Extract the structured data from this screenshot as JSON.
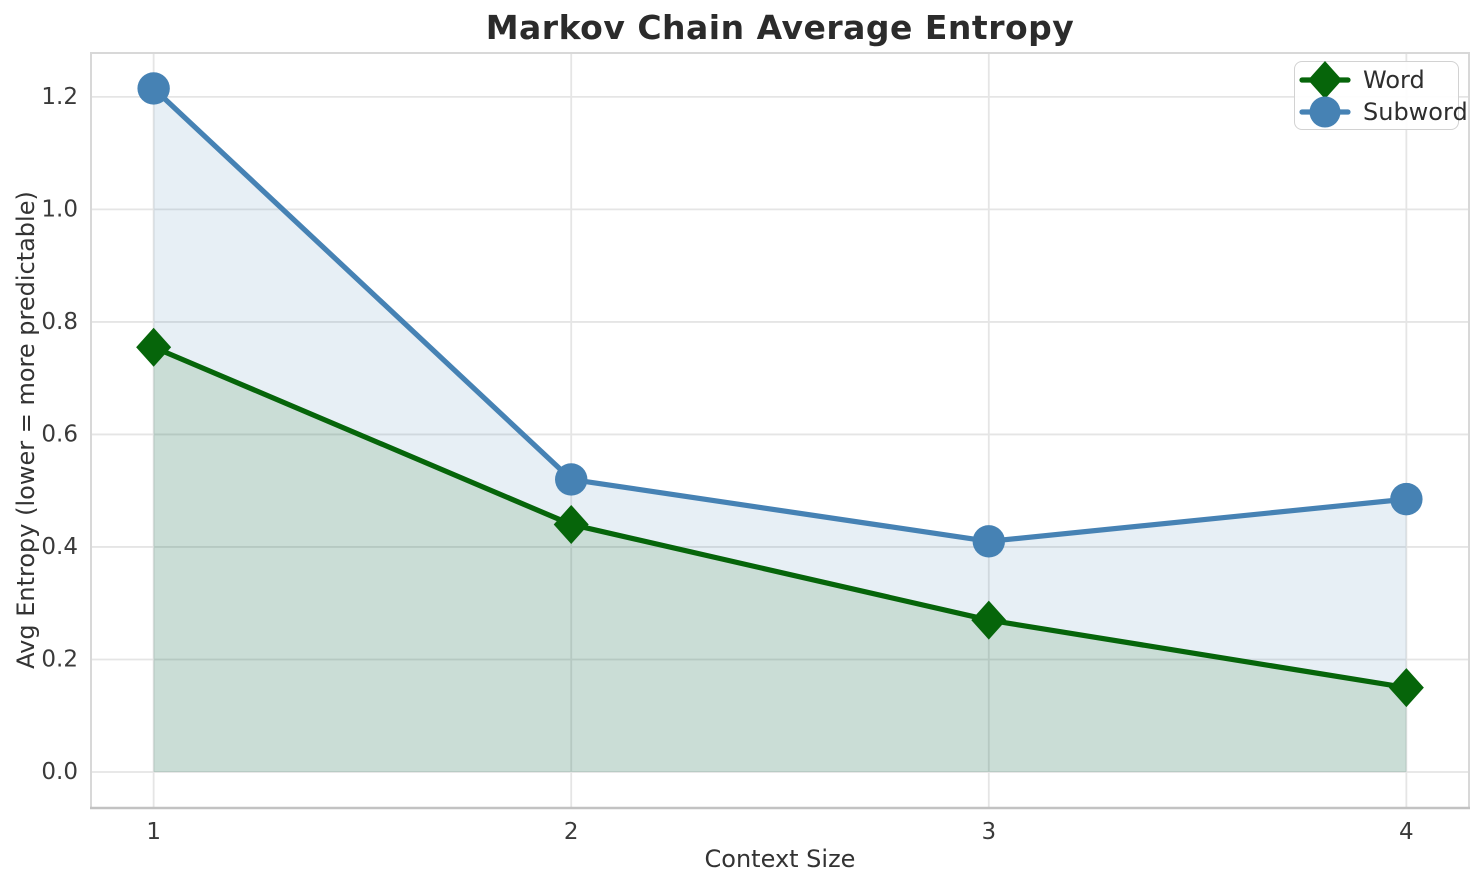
{
  "chart_data": {
    "type": "line",
    "title": "Markov Chain Average Entropy",
    "xlabel": "Context Size",
    "ylabel": "Avg Entropy (lower = more predictable)",
    "x": [
      1,
      2,
      3,
      4
    ],
    "series": [
      {
        "name": "Word",
        "values": [
          0.755,
          0.44,
          0.27,
          0.15
        ],
        "color": "#06650a",
        "marker": "diamond",
        "area_fill": true,
        "fill_opacity": 0.13
      },
      {
        "name": "Subword",
        "values": [
          1.215,
          0.52,
          0.41,
          0.485
        ],
        "color": "#4682b4",
        "marker": "circle",
        "area_fill": true,
        "fill_opacity": 0.13
      }
    ],
    "xticks": [
      "1",
      "2",
      "3",
      "4"
    ],
    "yticks": [
      "0.0",
      "0.2",
      "0.4",
      "0.6",
      "0.8",
      "1.0",
      "1.2"
    ],
    "xlim": [
      0.85,
      4.15
    ],
    "ylim": [
      -0.064,
      1.278
    ],
    "grid": true,
    "legend": {
      "position": "upper right",
      "entries": [
        "Word",
        "Subword"
      ]
    },
    "colors": {
      "grid": "#e5e5e5",
      "spine": "#d8d8d8",
      "bottom_spine": "#c2c2c2",
      "tick_text": "#3a3a3a"
    }
  }
}
